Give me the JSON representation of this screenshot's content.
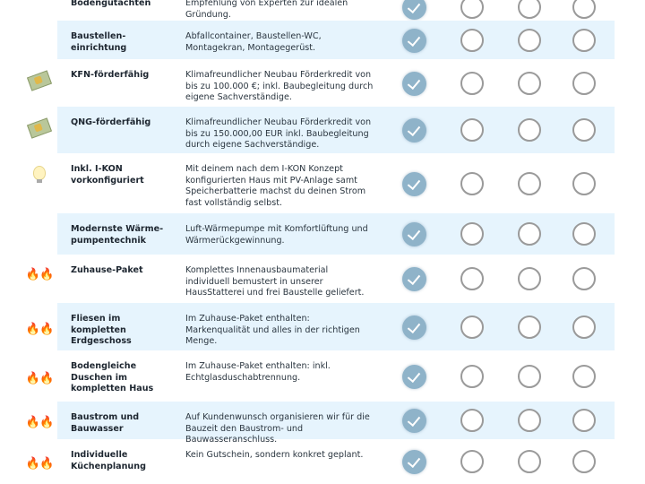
{
  "accent_color": "#8fb3c9",
  "row_highlight_color": "#e6f4fd",
  "rows": [
    {
      "icon": "",
      "title": "Bodengutachten",
      "desc": "Empfehlung von Experten zur idealen Gründung.",
      "included": [
        true,
        false,
        false,
        false
      ]
    },
    {
      "icon": "",
      "title": "Baustellen-einrichtung",
      "desc": "Abfallcontainer, Baustellen-WC, Montagekran, Montagegerüst.",
      "included": [
        true,
        false,
        false,
        false
      ]
    },
    {
      "icon": "money-with-wings-icon",
      "title": "KFN-förderfähig",
      "desc": "Klimafreundlicher Neubau Förderkredit von bis zu 100.000 €; inkl. Baubegleitung durch eigene Sachverständige.",
      "included": [
        true,
        false,
        false,
        false
      ]
    },
    {
      "icon": "money-with-wings-icon",
      "title": "QNG-förderfähig",
      "desc": "Klimafreundlicher Neubau Förderkredit von bis zu 150.000,00 EUR inkl. Baubegleitung durch eigene Sachverständige.",
      "included": [
        true,
        false,
        false,
        false
      ]
    },
    {
      "icon": "light-bulb-icon",
      "title": "Inkl. I-KON vorkonfiguriert",
      "desc": "Mit deinem nach dem I-KON Konzept konfigurierten Haus mit PV-Anlage samt Speicherbatterie machst du deinen Strom fast vollständig selbst.",
      "included": [
        true,
        false,
        false,
        false
      ]
    },
    {
      "icon": "",
      "title": "Modernste Wärme-pumpentechnik",
      "desc": "Luft-Wärmepumpe mit Komfortlüftung und Wärmerückgewinnung.",
      "included": [
        true,
        false,
        false,
        false
      ]
    },
    {
      "icon": "fire-icon",
      "title": "Zuhause-Paket",
      "desc": "Komplettes Innenausbaumaterial individuell bemustert in unserer HausStatterei und frei Baustelle geliefert.",
      "included": [
        true,
        false,
        false,
        false
      ]
    },
    {
      "icon": "fire-icon",
      "title": "Fliesen im kompletten Erdgeschoss",
      "desc": "Im Zuhause-Paket enthalten: Markenqualität und alles in der richtigen Menge.",
      "included": [
        true,
        false,
        false,
        false
      ]
    },
    {
      "icon": "fire-icon",
      "title": "Bodengleiche Duschen im kompletten Haus",
      "desc": "Im Zuhause-Paket enthalten: inkl. Echtglasduschabtrennung.",
      "included": [
        true,
        false,
        false,
        false
      ]
    },
    {
      "icon": "fire-icon",
      "title": "Baustrom und Bauwasser",
      "desc": "Auf Kundenwunsch organisieren wir für die Bauzeit den Baustrom- und Bauwasseranschluss.",
      "included": [
        true,
        false,
        false,
        false
      ]
    },
    {
      "icon": "fire-icon",
      "title": "Individuelle Küchenplanung",
      "desc": "Kein Gutschein, sondern konkret geplant.",
      "included": [
        true,
        false,
        false,
        false
      ]
    }
  ]
}
